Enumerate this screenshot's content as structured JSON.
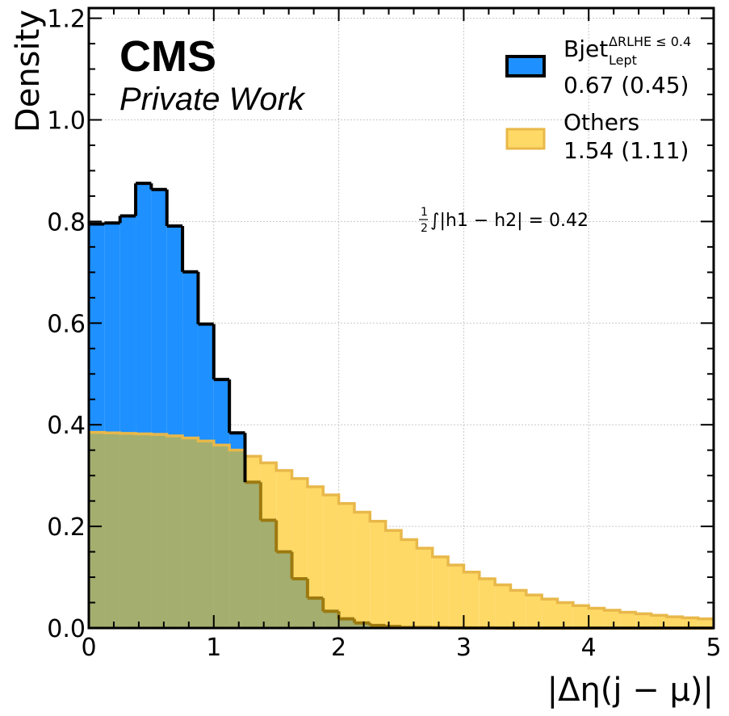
{
  "chart_data": {
    "type": "histogram",
    "xlabel": "|Δη(j − μ)|",
    "ylabel": "Density",
    "xlim": [
      0,
      5
    ],
    "ylim": [
      0,
      1.22
    ],
    "x_ticks": [
      "0",
      "1",
      "2",
      "3",
      "4",
      "5"
    ],
    "y_ticks": [
      "0.0",
      "0.2",
      "0.4",
      "0.6",
      "0.8",
      "1.0",
      "1.2"
    ],
    "grid": true,
    "legend_position": "top-right",
    "bin_edges": [
      0,
      0.125,
      0.25,
      0.375,
      0.5,
      0.625,
      0.75,
      0.875,
      1.0,
      1.125,
      1.25,
      1.375,
      1.5,
      1.625,
      1.75,
      1.875,
      2.0,
      2.125,
      2.25,
      2.375,
      2.5,
      2.625,
      2.75,
      2.875,
      3.0,
      3.125,
      3.25,
      3.375,
      3.5,
      3.625,
      3.75,
      3.875,
      4.0,
      4.125,
      4.25,
      4.375,
      4.5,
      4.625,
      4.75,
      4.875,
      5.0
    ],
    "series": [
      {
        "name": "Others",
        "legend_line1": "Others",
        "legend_line2": "1.54 (1.11)",
        "fill_color": "#FFD966",
        "edge_color": "#E8B84A",
        "values": [
          0.385,
          0.384,
          0.383,
          0.382,
          0.381,
          0.378,
          0.374,
          0.368,
          0.36,
          0.35,
          0.338,
          0.325,
          0.31,
          0.294,
          0.278,
          0.262,
          0.245,
          0.228,
          0.21,
          0.192,
          0.174,
          0.157,
          0.14,
          0.124,
          0.11,
          0.097,
          0.085,
          0.074,
          0.065,
          0.057,
          0.05,
          0.044,
          0.039,
          0.035,
          0.031,
          0.028,
          0.025,
          0.022,
          0.02,
          0.018
        ]
      },
      {
        "name": "Bjet",
        "legend_line1": "Bjet",
        "legend_sup": "ΔRLHE ≤ 0.4",
        "legend_sub": "Lept",
        "legend_line2": "0.67 (0.45)",
        "fill_color": "#1E90FF",
        "edge_color": "#000000",
        "values": [
          0.795,
          0.797,
          0.811,
          0.875,
          0.863,
          0.791,
          0.701,
          0.598,
          0.489,
          0.384,
          0.287,
          0.212,
          0.15,
          0.097,
          0.059,
          0.033,
          0.018,
          0.01,
          0.005,
          0.003,
          0.001,
          0.001,
          0.0005,
          0.0003,
          0.0002,
          0.0001,
          0,
          0,
          0,
          0,
          0,
          0,
          0,
          0,
          0,
          0,
          0,
          0,
          0,
          0
        ]
      }
    ],
    "overlap_fill_color": "#A3AE6F",
    "overlap_edge_color": "#9C7A10",
    "annotation": "∫|h1 − h2| = 0.42",
    "annotation_frac_num": "1",
    "annotation_frac_den": "2"
  },
  "branding": {
    "experiment": "CMS",
    "subtitle": "Private Work"
  }
}
